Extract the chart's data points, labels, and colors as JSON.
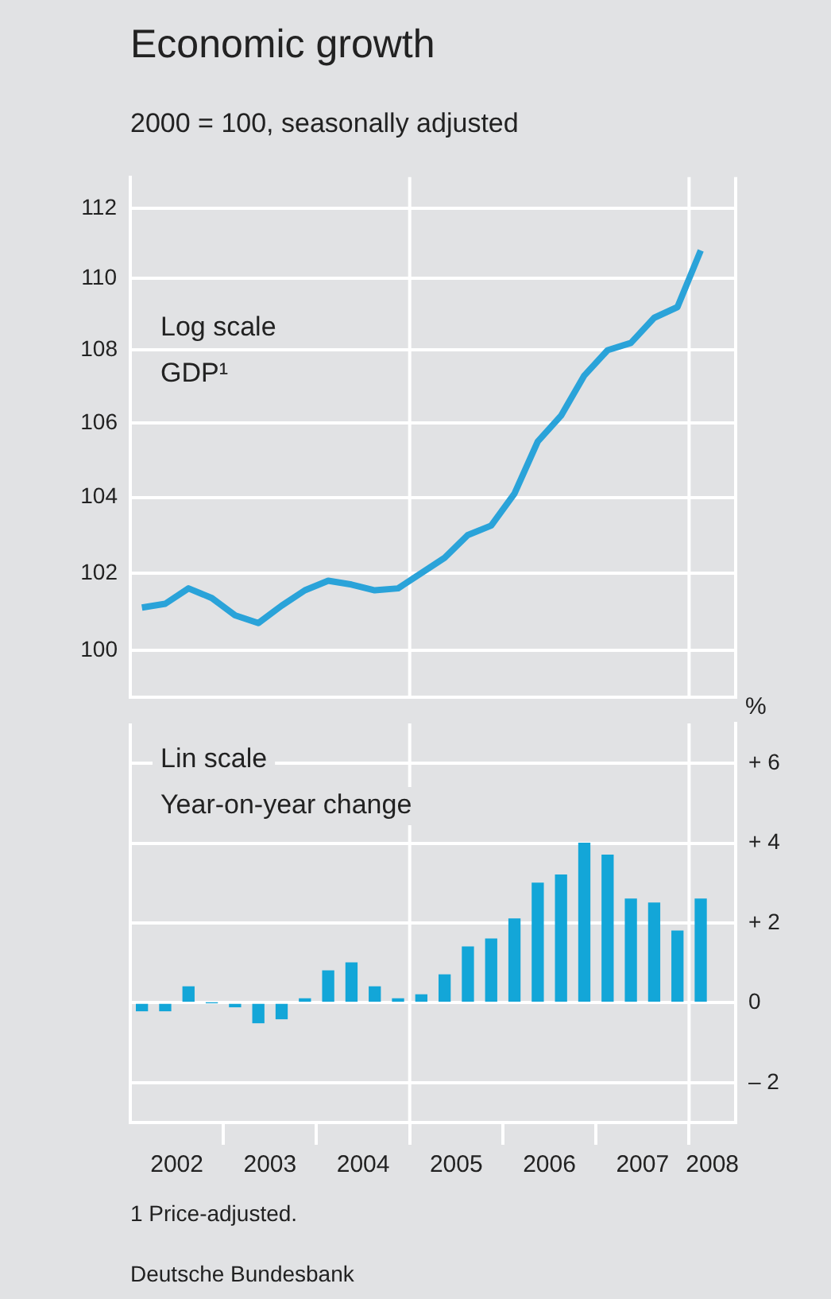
{
  "chart_data": [
    {
      "type": "line",
      "title": "Economic growth",
      "subtitle": "2000 = 100, seasonally adjusted",
      "log": true,
      "grid": "y",
      "tick_labels": "y",
      "legend": false,
      "annotations": [
        "Log scale"
      ],
      "x": [
        2002.125,
        2002.375,
        2002.625,
        2002.875,
        2003.125,
        2003.375,
        2003.625,
        2003.875,
        2004.125,
        2004.375,
        2004.625,
        2004.875,
        2005.125,
        2005.375,
        2005.625,
        2005.875,
        2006.125,
        2006.375,
        2006.625,
        2006.875,
        2007.125,
        2007.375,
        2007.625,
        2007.875,
        2008.125
      ],
      "xlim": [
        2002,
        2008.5
      ],
      "xticks": [
        {
          "value": 2003,
          "label": null
        },
        {
          "value": 2004,
          "label": null
        },
        {
          "value": 2005,
          "label": null
        },
        {
          "value": 2006,
          "label": null
        },
        {
          "value": 2007,
          "label": null
        },
        {
          "value": 2008,
          "label": null
        }
      ],
      "ylim": [
        98.8,
        112.9
      ],
      "yticks": [
        100,
        102,
        104,
        106,
        108,
        110,
        112
      ],
      "ref_lines": [
        {
          "axis": "x",
          "value": 2005,
          "color": "#ffffff"
        },
        {
          "axis": "x",
          "value": 2008,
          "color": "#ffffff"
        }
      ],
      "series": [
        {
          "name": "GDP¹",
          "color": "#2aa3d9",
          "values": [
            101.1,
            101.2,
            101.6,
            101.35,
            100.9,
            100.7,
            101.15,
            101.55,
            101.8,
            101.7,
            101.55,
            101.6,
            102.0,
            102.4,
            103.0,
            103.25,
            104.1,
            105.5,
            106.2,
            107.3,
            108.0,
            108.2,
            108.9,
            109.2,
            110.8
          ]
        }
      ]
    },
    {
      "type": "bar",
      "ylabel": "%",
      "grid": "y",
      "legend": false,
      "annotations": [
        "Lin scale",
        "1 Price-adjusted.",
        "Deutsche Bundesbank"
      ],
      "x": [
        2002.125,
        2002.375,
        2002.625,
        2002.875,
        2003.125,
        2003.375,
        2003.625,
        2003.875,
        2004.125,
        2004.375,
        2004.625,
        2004.875,
        2005.125,
        2005.375,
        2005.625,
        2005.875,
        2006.125,
        2006.375,
        2006.625,
        2006.875,
        2007.125,
        2007.375,
        2007.625,
        2007.875,
        2008.125
      ],
      "xlim": [
        2002,
        2008.5
      ],
      "xticks": [
        {
          "value": 2002.5,
          "label": "2002"
        },
        {
          "value": 2003,
          "label": null
        },
        {
          "value": 2003.5,
          "label": "2003"
        },
        {
          "value": 2004,
          "label": null
        },
        {
          "value": 2004.5,
          "label": "2004"
        },
        {
          "value": 2005,
          "label": null
        },
        {
          "value": 2005.5,
          "label": "2005"
        },
        {
          "value": 2006,
          "label": null
        },
        {
          "value": 2006.5,
          "label": "2006"
        },
        {
          "value": 2007,
          "label": null
        },
        {
          "value": 2007.5,
          "label": "2007"
        },
        {
          "value": 2008,
          "label": null
        },
        {
          "value": 2008.25,
          "label": "2008"
        }
      ],
      "ylim": [
        -3,
        7
      ],
      "yticks": [
        {
          "value": -2,
          "label": "– 2"
        },
        0,
        {
          "value": 2,
          "label": "+ 2"
        },
        {
          "value": 4,
          "label": "+ 4"
        },
        {
          "value": 6,
          "label": "+ 6"
        }
      ],
      "ref_lines": [
        {
          "axis": "x",
          "value": 2005,
          "color": "#ffffff"
        },
        {
          "axis": "x",
          "value": 2008,
          "color": "#ffffff"
        }
      ],
      "series": [
        {
          "name": "Year-on-year change",
          "color": "#13a6d8",
          "values": [
            -0.2,
            -0.2,
            0.4,
            0.0,
            -0.1,
            -0.5,
            -0.4,
            0.1,
            0.8,
            1.0,
            0.4,
            0.1,
            0.2,
            0.7,
            1.4,
            1.6,
            2.1,
            3.0,
            3.2,
            4.0,
            3.7,
            2.6,
            2.5,
            1.8,
            2.6
          ]
        }
      ]
    }
  ]
}
